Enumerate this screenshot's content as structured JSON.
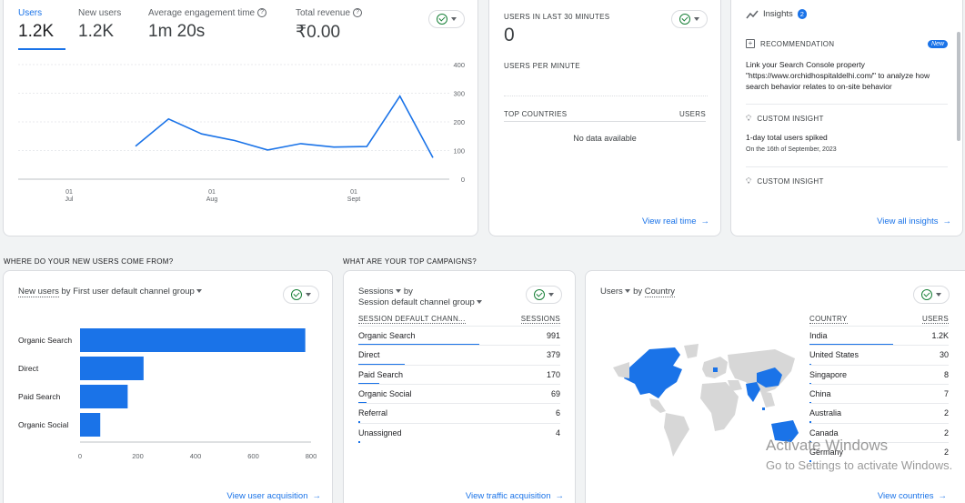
{
  "overview": {
    "metrics": [
      {
        "label": "Users",
        "value": "1.2K",
        "help": false
      },
      {
        "label": "New users",
        "value": "1.2K",
        "help": false
      },
      {
        "label": "Average engagement time",
        "value": "1m 20s",
        "help": true
      },
      {
        "label": "Total revenue",
        "value": "₹0.00",
        "help": true
      }
    ],
    "y_ticks": [
      "400",
      "300",
      "200",
      "100",
      "0"
    ],
    "x_ticks": [
      {
        "day": "01",
        "month": "Jul"
      },
      {
        "day": "01",
        "month": "Aug"
      },
      {
        "day": "01",
        "month": "Sept"
      }
    ]
  },
  "chart_data": [
    {
      "type": "line",
      "series": [
        {
          "name": "Users",
          "values": [
            [
              0,
              115
            ],
            [
              1,
              210
            ],
            [
              2,
              158
            ],
            [
              3,
              135
            ],
            [
              4,
              102
            ],
            [
              5,
              124
            ],
            [
              6,
              112
            ],
            [
              7,
              114
            ],
            [
              8,
              290
            ],
            [
              9,
              75
            ]
          ]
        }
      ],
      "ylim": [
        0,
        400
      ],
      "y_ticks": [
        0,
        100,
        200,
        300,
        400
      ],
      "x_tick_labels": [
        "01 Jul",
        "01 Aug",
        "01 Sept"
      ]
    },
    {
      "type": "bar",
      "orientation": "horizontal",
      "categories": [
        "Organic Search",
        "Direct",
        "Paid Search",
        "Organic Social"
      ],
      "values": [
        780,
        220,
        165,
        70
      ],
      "xlim": [
        0,
        800
      ],
      "x_ticks": [
        0,
        200,
        400,
        600,
        800
      ]
    }
  ],
  "realtime": {
    "title": "USERS IN LAST 30 MINUTES",
    "value": "0",
    "per_minute": "USERS PER MINUTE",
    "col_country": "TOP COUNTRIES",
    "col_users": "USERS",
    "empty": "No data available",
    "link": "View real time"
  },
  "insights": {
    "title": "Insights",
    "count": "2",
    "items": [
      {
        "type": "RECOMMENDATION",
        "badge": "New",
        "text": "Link your Search Console property \"https://www.orchidhospitaldelhi.com/\" to analyze how search behavior relates to on-site behavior",
        "sub": ""
      },
      {
        "type": "CUSTOM INSIGHT",
        "badge": "",
        "text": "1-day total users spiked",
        "sub": "On the 16th of September, 2023"
      },
      {
        "type": "CUSTOM INSIGHT",
        "badge": "",
        "text": "",
        "sub": ""
      }
    ],
    "link": "View all insights"
  },
  "acquisition": {
    "section": "WHERE DO YOUR NEW USERS COME FROM?",
    "metric": "New users",
    "by": "by First user default channel group",
    "link": "View user acquisition"
  },
  "campaigns": {
    "section": "WHAT ARE YOUR TOP CAMPAIGNS?",
    "metric": "Sessions",
    "by": "by",
    "dimension": "Session default channel group",
    "col_name": "SESSION DEFAULT CHANN...",
    "col_value": "SESSIONS",
    "rows": [
      {
        "name": "Organic Search",
        "value": "991",
        "share": 1.0
      },
      {
        "name": "Direct",
        "value": "379",
        "share": 0.38
      },
      {
        "name": "Paid Search",
        "value": "170",
        "share": 0.17
      },
      {
        "name": "Organic Social",
        "value": "69",
        "share": 0.07
      },
      {
        "name": "Referral",
        "value": "6",
        "share": 0.01
      },
      {
        "name": "Unassigned",
        "value": "4",
        "share": 0.005
      }
    ],
    "link": "View traffic acquisition"
  },
  "countries": {
    "metric": "Users",
    "by": "by",
    "dimension": "Country",
    "col_name": "COUNTRY",
    "col_value": "USERS",
    "rows": [
      {
        "name": "India",
        "value": "1.2K",
        "share": 1.0
      },
      {
        "name": "United States",
        "value": "30",
        "share": 0.025
      },
      {
        "name": "Singapore",
        "value": "8",
        "share": 0.01
      },
      {
        "name": "China",
        "value": "7",
        "share": 0.01
      },
      {
        "name": "Australia",
        "value": "2",
        "share": 0.005
      },
      {
        "name": "Canada",
        "value": "2",
        "share": 0.005
      },
      {
        "name": "Germany",
        "value": "2",
        "share": 0.005
      }
    ],
    "link": "View countries"
  },
  "watermark": {
    "line1": "Activate Windows",
    "line2": "Go to Settings to activate Windows."
  },
  "colors": {
    "accent": "#1a73e8",
    "bar": "#1a73e8",
    "ok": "#188038"
  }
}
